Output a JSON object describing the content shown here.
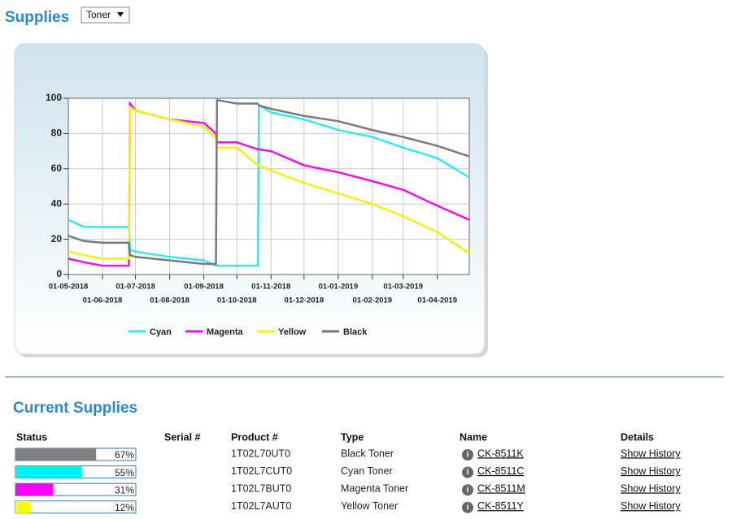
{
  "header": {
    "title": "Supplies",
    "selector": "Toner"
  },
  "chart_data": {
    "type": "line",
    "x": [
      "2018-05-01",
      "2018-05-15",
      "2018-06-01",
      "2018-06-25",
      "2018-06-26",
      "2018-07-01",
      "2018-08-01",
      "2018-09-01",
      "2018-09-12",
      "2018-09-13",
      "2018-10-01",
      "2018-10-20",
      "2018-10-21",
      "2018-11-01",
      "2018-12-01",
      "2019-01-01",
      "2019-02-01",
      "2019-03-01",
      "2019-04-01",
      "2019-04-30"
    ],
    "xlim": [
      "2018-05-01",
      "2019-04-30"
    ],
    "xticks": [
      {
        "value": "2018-05-01",
        "label": "01-05-2018"
      },
      {
        "value": "2018-06-01",
        "label": "01-06-2018"
      },
      {
        "value": "2018-07-01",
        "label": "01-07-2018"
      },
      {
        "value": "2018-08-01",
        "label": "01-08-2018"
      },
      {
        "value": "2018-09-01",
        "label": "01-09-2018"
      },
      {
        "value": "2018-10-01",
        "label": "01-10-2018"
      },
      {
        "value": "2018-11-01",
        "label": "01-11-2018"
      },
      {
        "value": "2018-12-01",
        "label": "01-12-2018"
      },
      {
        "value": "2019-01-01",
        "label": "01-01-2019"
      },
      {
        "value": "2019-02-01",
        "label": "01-02-2019"
      },
      {
        "value": "2019-03-01",
        "label": "01-03-2019"
      },
      {
        "value": "2019-04-01",
        "label": "01-04-2019"
      }
    ],
    "ylim": [
      0,
      100
    ],
    "yticks": [
      0,
      20,
      40,
      60,
      80,
      100
    ],
    "grid": true,
    "legend": "bottom",
    "series": [
      {
        "name": "Cyan",
        "color": "#33e8f0",
        "values": [
          31,
          27,
          27,
          27,
          14,
          13,
          10,
          8,
          5,
          5,
          5,
          5,
          96,
          92,
          88,
          82,
          78,
          72,
          66,
          55
        ]
      },
      {
        "name": "Magenta",
        "color": "#ee11ee",
        "values": [
          9,
          7,
          5,
          5,
          97,
          93,
          88,
          86,
          80,
          75,
          75,
          71,
          71,
          70,
          62,
          58,
          53,
          48,
          39,
          31
        ]
      },
      {
        "name": "Yellow",
        "color": "#f2f20f",
        "values": [
          13,
          11,
          9,
          9,
          95,
          93,
          88,
          84,
          77,
          72,
          72,
          62,
          62,
          59,
          52,
          46,
          40,
          33,
          24,
          12
        ]
      },
      {
        "name": "Black",
        "color": "#7a7a7a",
        "values": [
          22,
          19,
          18,
          18,
          11,
          10,
          8,
          6,
          6,
          99,
          97,
          97,
          96,
          94,
          90,
          87,
          82,
          78,
          73,
          67
        ]
      }
    ]
  },
  "current_supplies": {
    "title": "Current Supplies",
    "columns": [
      "Status",
      "Serial #",
      "Product #",
      "Type",
      "Name",
      "Details"
    ],
    "rows": [
      {
        "status": 67,
        "status_label": "67%",
        "color": "#808080",
        "product": "1T02L70UT0",
        "type": "Black Toner",
        "name": "CK-8511K",
        "details": "Show History"
      },
      {
        "status": 55,
        "status_label": "55%",
        "color": "#00f2f2",
        "product": "1T02L7CUT0",
        "type": "Cyan Toner",
        "name": "CK-8511C",
        "details": "Show History"
      },
      {
        "status": 31,
        "status_label": "31%",
        "color": "#ff00ff",
        "product": "1T02L7BUT0",
        "type": "Magenta Toner",
        "name": "CK-8511M",
        "details": "Show History"
      },
      {
        "status": 12,
        "status_label": "12%",
        "color": "#ffff00",
        "product": "1T02L7AUT0",
        "type": "Yellow Toner",
        "name": "CK-8511Y",
        "details": "Show History"
      }
    ]
  }
}
